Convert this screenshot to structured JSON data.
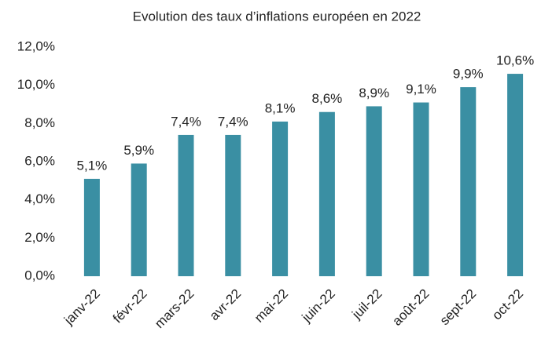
{
  "chart_data": {
    "type": "bar",
    "title": "Evolution des taux d’inflations européen en 2022",
    "categories": [
      "janv-22",
      "févr-22",
      "mars-22",
      "avr-22",
      "mai-22",
      "juin-22",
      "juil-22",
      "août-22",
      "sept-22",
      "oct-22"
    ],
    "values": [
      5.1,
      5.9,
      7.4,
      7.4,
      8.1,
      8.6,
      8.9,
      9.1,
      9.9,
      10.6
    ],
    "value_labels": [
      "5,1%",
      "5,9%",
      "7,4%",
      "7,4%",
      "8,1%",
      "8,6%",
      "8,9%",
      "9,1%",
      "9,9%",
      "10,6%"
    ],
    "color": "#3a8fa3",
    "ylim": [
      0,
      12
    ],
    "yticks": [
      {
        "value": 0,
        "label": "0,0%"
      },
      {
        "value": 2,
        "label": "2,0%"
      },
      {
        "value": 4,
        "label": "4,0%"
      },
      {
        "value": 6,
        "label": "6,0%"
      },
      {
        "value": 8,
        "label": "8,0%"
      },
      {
        "value": 10,
        "label": "10,0%"
      },
      {
        "value": 12,
        "label": "12,0%"
      }
    ],
    "grid": false
  }
}
